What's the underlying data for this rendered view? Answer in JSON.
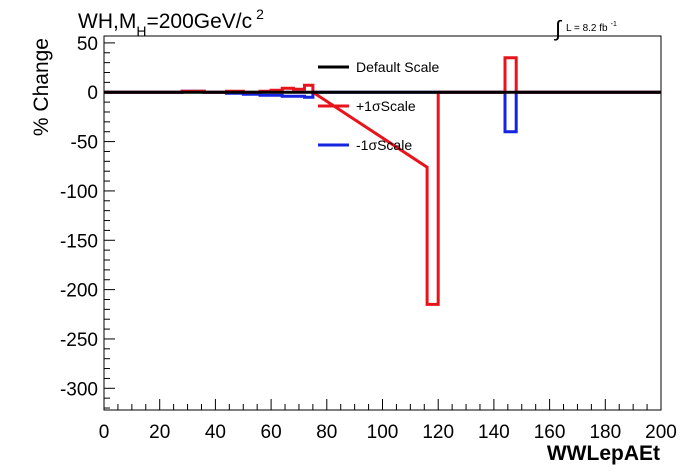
{
  "chart_data": {
    "type": "line",
    "title_main": "WH,M",
    "title_sub": "H",
    "title_rest": "=200GeV/c",
    "title_sup": "2",
    "lumi_integral": "∫",
    "lumi_text": "L = 8.2 fb",
    "lumi_sup": "-1",
    "xlabel": "WWLepAEt",
    "ylabel": "% Change",
    "xlim": [
      0,
      200
    ],
    "ylim": [
      -322,
      57
    ],
    "x_ticks": [
      0,
      20,
      40,
      60,
      80,
      100,
      120,
      140,
      160,
      180,
      200
    ],
    "y_ticks": [
      50,
      0,
      -50,
      -100,
      -150,
      -200,
      -250,
      -300
    ],
    "grid": false,
    "legend_position": "top-center",
    "series": [
      {
        "name": "Default Scale",
        "color": "#000000",
        "points": [
          [
            0,
            0
          ],
          [
            200,
            0
          ]
        ]
      },
      {
        "name": "+1σScale",
        "color": "#e8141b",
        "points": [
          [
            0,
            0
          ],
          [
            28,
            0
          ],
          [
            28,
            1
          ],
          [
            36,
            1
          ],
          [
            36,
            0
          ],
          [
            44,
            0
          ],
          [
            44,
            1
          ],
          [
            50,
            1
          ],
          [
            50,
            0
          ],
          [
            56,
            0
          ],
          [
            56,
            1
          ],
          [
            60,
            1
          ],
          [
            60,
            2
          ],
          [
            64,
            2
          ],
          [
            64,
            4
          ],
          [
            68,
            4
          ],
          [
            68,
            3
          ],
          [
            72,
            3
          ],
          [
            72,
            7
          ],
          [
            75,
            7
          ],
          [
            75,
            0
          ],
          [
            116,
            -76
          ],
          [
            116,
            -215
          ],
          [
            120,
            -215
          ],
          [
            120,
            -76
          ],
          [
            120,
            0
          ],
          [
            144,
            0
          ],
          [
            144,
            35
          ],
          [
            148,
            35
          ],
          [
            148,
            0
          ],
          [
            200,
            0
          ]
        ]
      },
      {
        "name": "-1σScale",
        "color": "#1424e0",
        "points": [
          [
            0,
            0
          ],
          [
            28,
            0
          ],
          [
            28,
            1
          ],
          [
            36,
            1
          ],
          [
            36,
            0
          ],
          [
            44,
            0
          ],
          [
            44,
            -1
          ],
          [
            50,
            -1
          ],
          [
            50,
            -2
          ],
          [
            56,
            -2
          ],
          [
            56,
            -3
          ],
          [
            64,
            -3
          ],
          [
            64,
            -4
          ],
          [
            72,
            -4
          ],
          [
            72,
            -5
          ],
          [
            75,
            -5
          ],
          [
            75,
            0
          ],
          [
            137,
            0
          ],
          [
            144,
            0
          ],
          [
            144,
            -40
          ],
          [
            148,
            -40
          ],
          [
            148,
            0
          ],
          [
            200,
            0
          ]
        ]
      }
    ]
  }
}
